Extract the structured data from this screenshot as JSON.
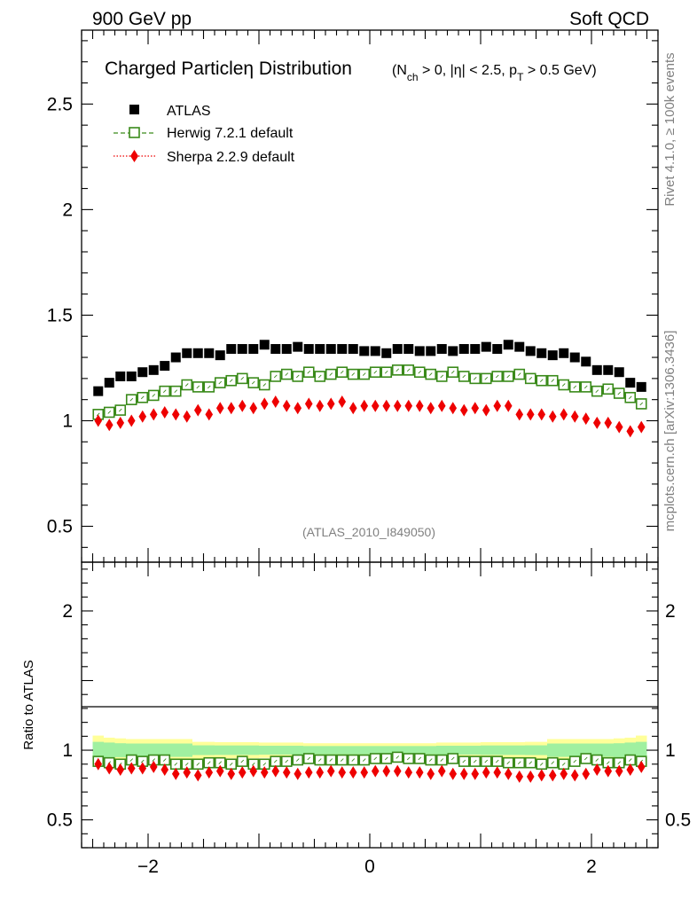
{
  "header": {
    "left": "900 GeV pp",
    "right": "Soft QCD"
  },
  "side_labels": {
    "top": "Rivet 4.1.0, ≥ 100k events",
    "bottom": "mcplots.cern.ch [arXiv:1306.3436]"
  },
  "plot_title": {
    "main": "Charged Particleη Distribution",
    "cond_a": "(N",
    "cond_sub": "ch",
    "cond_b": " > 0, |η| < 2.5, p",
    "cond_sub2": "T",
    "cond_c": " > 0.5 GeV)"
  },
  "analysis_id": "(ATLAS_2010_I849050)",
  "legend": {
    "atlas": "ATLAS",
    "herwig": "Herwig 7.2.1 default",
    "sherpa": "Sherpa 2.2.9 default"
  },
  "colors": {
    "atlas": "#000000",
    "herwig": "#3a8a1a",
    "sherpa": "#ee0000",
    "band_inner": "#a0f0a0",
    "band_outer": "#ffff99"
  },
  "chart_data": [
    {
      "type": "scatter",
      "panel": "main",
      "title": "Charged Particleη Distribution",
      "xlim": [
        -2.6,
        2.6
      ],
      "ylim": [
        0.33,
        2.85
      ],
      "yticks": [
        0.5,
        1,
        1.5,
        2,
        2.5
      ],
      "ytick_labels": [
        "0.5",
        "1",
        "1.5",
        "2",
        "2.5"
      ],
      "x": [
        -2.45,
        -2.35,
        -2.25,
        -2.15,
        -2.05,
        -1.95,
        -1.85,
        -1.75,
        -1.65,
        -1.55,
        -1.45,
        -1.35,
        -1.25,
        -1.15,
        -1.05,
        -0.95,
        -0.85,
        -0.75,
        -0.65,
        -0.55,
        -0.45,
        -0.35,
        -0.25,
        -0.15,
        -0.05,
        0.05,
        0.15,
        0.25,
        0.35,
        0.45,
        0.55,
        0.65,
        0.75,
        0.85,
        0.95,
        1.05,
        1.15,
        1.25,
        1.35,
        1.45,
        1.55,
        1.65,
        1.75,
        1.85,
        1.95,
        2.05,
        2.15,
        2.25,
        2.35,
        2.45
      ],
      "series": [
        {
          "name": "ATLAS",
          "values": [
            1.14,
            1.18,
            1.21,
            1.21,
            1.23,
            1.24,
            1.26,
            1.3,
            1.32,
            1.32,
            1.32,
            1.31,
            1.34,
            1.34,
            1.34,
            1.36,
            1.34,
            1.34,
            1.35,
            1.34,
            1.34,
            1.34,
            1.34,
            1.34,
            1.33,
            1.33,
            1.32,
            1.34,
            1.34,
            1.33,
            1.33,
            1.34,
            1.33,
            1.34,
            1.34,
            1.35,
            1.34,
            1.36,
            1.35,
            1.33,
            1.32,
            1.31,
            1.32,
            1.3,
            1.28,
            1.24,
            1.24,
            1.23,
            1.18,
            1.16
          ]
        },
        {
          "name": "Herwig 7.2.1 default",
          "values": [
            1.03,
            1.04,
            1.05,
            1.1,
            1.11,
            1.12,
            1.14,
            1.14,
            1.17,
            1.16,
            1.16,
            1.18,
            1.19,
            1.2,
            1.18,
            1.17,
            1.21,
            1.22,
            1.21,
            1.23,
            1.21,
            1.22,
            1.23,
            1.22,
            1.22,
            1.23,
            1.23,
            1.24,
            1.24,
            1.23,
            1.22,
            1.21,
            1.23,
            1.21,
            1.2,
            1.2,
            1.21,
            1.21,
            1.22,
            1.2,
            1.19,
            1.19,
            1.17,
            1.16,
            1.16,
            1.14,
            1.15,
            1.13,
            1.11,
            1.08
          ]
        },
        {
          "name": "Sherpa 2.2.9 default",
          "values": [
            1.0,
            0.98,
            0.99,
            1.0,
            1.02,
            1.03,
            1.04,
            1.03,
            1.02,
            1.05,
            1.03,
            1.06,
            1.06,
            1.07,
            1.06,
            1.08,
            1.09,
            1.07,
            1.06,
            1.08,
            1.07,
            1.08,
            1.09,
            1.06,
            1.07,
            1.07,
            1.07,
            1.07,
            1.07,
            1.07,
            1.06,
            1.07,
            1.06,
            1.05,
            1.06,
            1.05,
            1.07,
            1.07,
            1.03,
            1.03,
            1.03,
            1.02,
            1.03,
            1.02,
            1.01,
            0.99,
            0.99,
            0.97,
            0.95,
            0.97
          ]
        }
      ]
    },
    {
      "type": "scatter",
      "panel": "ratio",
      "ylabel": "Ratio to ATLAS",
      "xlabel": "",
      "xlim": [
        -2.6,
        2.6
      ],
      "ylim": [
        0.3,
        2.35
      ],
      "xticks": [
        -2,
        0,
        2
      ],
      "xtick_labels": [
        "−2",
        "0",
        "2"
      ],
      "yticks": [
        0.5,
        1,
        2
      ],
      "ytick_labels": [
        "0.5",
        "1",
        "2"
      ],
      "band_edges_x": [
        -2.5,
        -2.4,
        -2.3,
        -2.2,
        -1.6,
        -1.4,
        -1.0,
        -0.6,
        0.6,
        1.0,
        1.4,
        1.6,
        2.2,
        2.3,
        2.4,
        2.5
      ],
      "band_outer_halfwidth": [
        0.105,
        0.09,
        0.085,
        0.08,
        0.06,
        0.058,
        0.055,
        0.05,
        0.055,
        0.058,
        0.06,
        0.08,
        0.085,
        0.09,
        0.105
      ],
      "band_inner_halfwidth": [
        0.06,
        0.055,
        0.05,
        0.048,
        0.035,
        0.034,
        0.032,
        0.03,
        0.032,
        0.034,
        0.035,
        0.048,
        0.05,
        0.055,
        0.06
      ],
      "series": [
        {
          "name": "Herwig 7.2.1 default",
          "values": [
            0.92,
            0.91,
            0.9,
            0.93,
            0.92,
            0.93,
            0.93,
            0.9,
            0.9,
            0.9,
            0.91,
            0.91,
            0.9,
            0.92,
            0.9,
            0.9,
            0.92,
            0.92,
            0.93,
            0.94,
            0.93,
            0.93,
            0.93,
            0.93,
            0.93,
            0.94,
            0.94,
            0.95,
            0.94,
            0.94,
            0.93,
            0.93,
            0.94,
            0.92,
            0.92,
            0.92,
            0.92,
            0.91,
            0.91,
            0.91,
            0.9,
            0.91,
            0.9,
            0.92,
            0.94,
            0.93,
            0.91,
            0.91,
            0.93,
            0.92
          ]
        },
        {
          "name": "Sherpa 2.2.9 default",
          "values": [
            0.9,
            0.87,
            0.86,
            0.87,
            0.87,
            0.88,
            0.86,
            0.83,
            0.84,
            0.82,
            0.84,
            0.85,
            0.83,
            0.84,
            0.85,
            0.84,
            0.85,
            0.84,
            0.83,
            0.84,
            0.84,
            0.85,
            0.84,
            0.84,
            0.84,
            0.85,
            0.85,
            0.85,
            0.84,
            0.84,
            0.83,
            0.85,
            0.83,
            0.83,
            0.83,
            0.84,
            0.84,
            0.83,
            0.81,
            0.81,
            0.82,
            0.82,
            0.83,
            0.82,
            0.83,
            0.86,
            0.85,
            0.85,
            0.86,
            0.88
          ]
        }
      ]
    }
  ]
}
